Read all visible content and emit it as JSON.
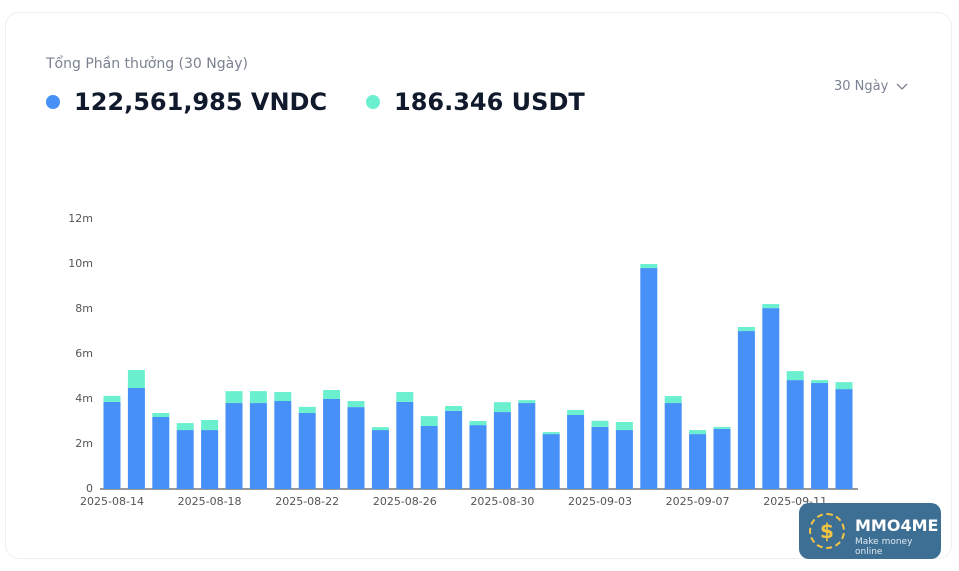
{
  "header": {
    "title": "Tổng Phần thưởng (30 Ngày)",
    "totals": [
      "122,561,985 VNDC",
      "186.346 USDT"
    ],
    "period": "30 Ngày"
  },
  "watermark": {
    "brand": "MMO4ME",
    "tagline": "Make money online"
  },
  "chart_data": {
    "type": "stacked-bar",
    "categories": [
      "2025-08-14",
      null,
      null,
      null,
      "2025-08-18",
      null,
      null,
      null,
      "2025-08-22",
      null,
      null,
      null,
      "2025-08-26",
      null,
      null,
      null,
      "2025-08-30",
      null,
      null,
      null,
      "2025-09-03",
      null,
      null,
      null,
      "2025-09-07",
      null,
      null,
      null,
      "2025-09-11",
      null,
      null
    ],
    "series": [
      {
        "color": "#4690f7",
        "values": [
          3.87,
          4.49,
          3.2,
          2.62,
          2.62,
          3.82,
          3.82,
          3.91,
          3.38,
          4.0,
          3.64,
          2.62,
          3.87,
          2.8,
          3.47,
          2.84,
          3.42,
          3.82,
          2.44,
          3.29,
          2.76,
          2.62,
          9.82,
          3.82,
          2.44,
          2.67,
          7.02,
          8.04,
          4.84,
          4.71,
          4.44
        ]
      },
      {
        "color": "#6bf0cf",
        "values": [
          0.27,
          0.8,
          0.18,
          0.31,
          0.45,
          0.53,
          0.53,
          0.4,
          0.27,
          0.4,
          0.27,
          0.13,
          0.44,
          0.44,
          0.22,
          0.18,
          0.44,
          0.13,
          0.09,
          0.22,
          0.27,
          0.36,
          0.18,
          0.31,
          0.18,
          0.09,
          0.18,
          0.18,
          0.4,
          0.13,
          0.31
        ]
      }
    ],
    "ylim": [
      0,
      12
    ],
    "yticks": [
      0,
      {
        "value": 2,
        "label": "2m"
      },
      {
        "value": 4,
        "label": "4m"
      },
      {
        "value": 6,
        "label": "6m"
      },
      {
        "value": 8,
        "label": "8m"
      },
      {
        "value": 10,
        "label": "10m"
      },
      {
        "value": 12,
        "label": "12m"
      }
    ]
  }
}
